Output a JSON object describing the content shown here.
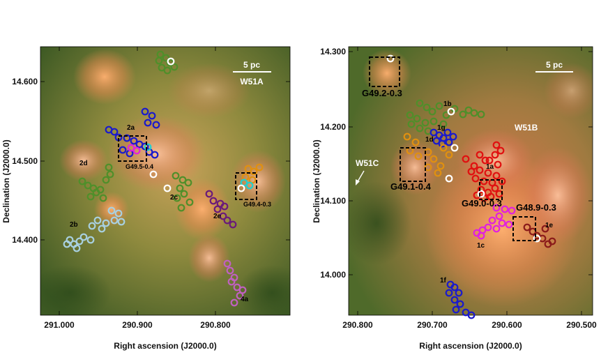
{
  "panels": [
    {
      "id": "W51A",
      "scale_bar_label": "5 pc",
      "region_label": "W51A",
      "x_axis_label": "Right ascension (J2000.0)",
      "y_axis_label": "Declination (J2000.0)",
      "x_ticks": [
        "291.000",
        "290.900",
        "290.800"
      ],
      "y_ticks": [
        "14.600",
        "14.500",
        "14.400"
      ],
      "box_labels": [
        "G49.5-0.4",
        "G49.4-0.3"
      ],
      "group_labels": [
        "2a",
        "2b",
        "2c",
        "2d",
        "2e",
        "4a"
      ]
    },
    {
      "id": "W51B",
      "scale_bar_label": "5 pc",
      "region_labels": [
        "W51B",
        "W51C"
      ],
      "x_axis_label": "Right ascension (J2000.0)",
      "y_axis_label": "Declination (J2000.0)",
      "x_ticks": [
        "290.800",
        "290.700",
        "290.600",
        "290.500"
      ],
      "y_ticks": [
        "14.300",
        "14.200",
        "14.100",
        "14.000"
      ],
      "box_labels": [
        "G49.2-0.3",
        "G49.1-0.4",
        "G49.0-0.3",
        "G48.9-0.3"
      ],
      "group_labels": [
        "1a",
        "1b",
        "1c",
        "1d",
        "1e",
        "1f",
        "1g"
      ]
    }
  ],
  "colors": {
    "green": "#4f8f2a",
    "blue": "#1a1acc",
    "purple": "#6a1a7a",
    "magenta": "#e020e0",
    "orange": "#e09010",
    "red": "#e01010",
    "darkred": "#8a1a1a",
    "lightblue": "#a8d0e0",
    "cyan": "#20d0d0",
    "violet": "#c060c0",
    "white": "#ffffff"
  }
}
